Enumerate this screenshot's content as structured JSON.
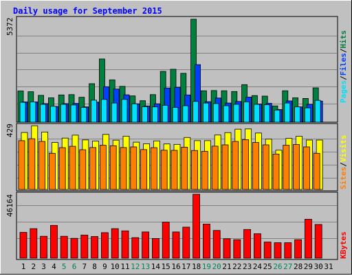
{
  "title": "Daily usage for September 2015",
  "colors": {
    "frame": "#c0c0c0",
    "plot": "#c0c0c0",
    "title": "#0000ff",
    "hits": "#008040",
    "files": "#0040ff",
    "pages": "#00e0ff",
    "visits": "#ffff00",
    "sites": "#ff8000",
    "kbytes": "#ff0000",
    "weekday": "#000000",
    "weekend": "#00805c"
  },
  "chart_data": [
    {
      "type": "bar",
      "name": "hits-files-pages",
      "ymax_label": "5372",
      "ylim": [
        0,
        5372
      ],
      "axis_label_parts": [
        "Pages",
        "/",
        "Files",
        "/",
        "Hits"
      ],
      "categories": [
        "1",
        "2",
        "3",
        "4",
        "5",
        "6",
        "7",
        "8",
        "9",
        "10",
        "11",
        "12",
        "13",
        "14",
        "15",
        "16",
        "17",
        "18",
        "19",
        "20",
        "21",
        "22",
        "23",
        "24",
        "25",
        "26",
        "27",
        "28",
        "29",
        "30",
        "31"
      ],
      "series": [
        {
          "name": "Hits",
          "values": [
            1630,
            1590,
            1400,
            1270,
            1420,
            1440,
            1300,
            2010,
            3300,
            2210,
            1870,
            1370,
            1120,
            1440,
            2650,
            2760,
            2550,
            5372,
            1640,
            1650,
            1640,
            1600,
            1960,
            1390,
            1360,
            850,
            1640,
            1270,
            1240,
            1790,
            0
          ]
        },
        {
          "name": "Files",
          "values": [
            1060,
            1060,
            970,
            820,
            970,
            980,
            800,
            1050,
            1850,
            1730,
            1430,
            960,
            850,
            960,
            1780,
            1820,
            1420,
            3000,
            1070,
            1260,
            1000,
            1080,
            1310,
            950,
            990,
            660,
            1110,
            800,
            930,
            1100,
            0
          ]
        },
        {
          "name": "Pages",
          "values": [
            1040,
            1060,
            930,
            830,
            930,
            900,
            770,
            1150,
            1190,
            1000,
            1190,
            960,
            810,
            800,
            880,
            770,
            860,
            1080,
            1000,
            970,
            860,
            930,
            1060,
            930,
            910,
            630,
            1000,
            800,
            750,
            1140,
            0
          ]
        }
      ]
    },
    {
      "type": "bar",
      "name": "visits-sites",
      "ymax_label": "429",
      "ylim": [
        0,
        429
      ],
      "axis_label_parts": [
        "Sites",
        "/",
        "Visits"
      ],
      "categories": [
        "1",
        "2",
        "3",
        "4",
        "5",
        "6",
        "7",
        "8",
        "9",
        "10",
        "11",
        "12",
        "13",
        "14",
        "15",
        "16",
        "17",
        "18",
        "19",
        "20",
        "21",
        "22",
        "23",
        "24",
        "25",
        "26",
        "27",
        "28",
        "29",
        "30",
        "31"
      ],
      "series": [
        {
          "name": "Visits",
          "values": [
            383,
            428,
            386,
            316,
            345,
            365,
            333,
            325,
            370,
            331,
            358,
            318,
            307,
            326,
            306,
            303,
            349,
            328,
            328,
            366,
            382,
            405,
            407,
            379,
            338,
            264,
            343,
            357,
            332,
            332,
            0
          ]
        },
        {
          "name": "Sites",
          "values": [
            328,
            341,
            323,
            243,
            281,
            290,
            267,
            282,
            297,
            294,
            282,
            286,
            268,
            281,
            264,
            263,
            284,
            262,
            256,
            291,
            300,
            323,
            335,
            316,
            300,
            238,
            297,
            302,
            286,
            243,
            0
          ]
        }
      ]
    },
    {
      "type": "bar",
      "name": "kbytes",
      "ymax_label": "46164",
      "ylim": [
        0,
        46164
      ],
      "axis_label_parts": [
        "KBytes"
      ],
      "categories": [
        "1",
        "2",
        "3",
        "4",
        "5",
        "6",
        "7",
        "8",
        "9",
        "10",
        "11",
        "12",
        "13",
        "14",
        "15",
        "16",
        "17",
        "18",
        "19",
        "20",
        "21",
        "22",
        "23",
        "24",
        "25",
        "26",
        "27",
        "28",
        "29",
        "30",
        "31"
      ],
      "series": [
        {
          "name": "KBytes",
          "values": [
            18600,
            21300,
            15800,
            23700,
            15800,
            14300,
            16700,
            15600,
            18400,
            21300,
            19700,
            14800,
            18900,
            14200,
            26000,
            18900,
            22400,
            46164,
            24600,
            20000,
            14000,
            13300,
            20700,
            17600,
            11600,
            11100,
            11100,
            13300,
            28100,
            24300,
            0
          ]
        }
      ]
    }
  ],
  "x_axis": {
    "labels": [
      "1",
      "2",
      "3",
      "4",
      "5",
      "6",
      "7",
      "8",
      "9",
      "10",
      "11",
      "12",
      "13",
      "14",
      "15",
      "16",
      "17",
      "18",
      "19",
      "20",
      "21",
      "22",
      "23",
      "24",
      "25",
      "26",
      "27",
      "28",
      "29",
      "30",
      "31"
    ],
    "weekend_days": [
      "5",
      "6",
      "12",
      "13",
      "19",
      "20",
      "26",
      "27"
    ]
  }
}
